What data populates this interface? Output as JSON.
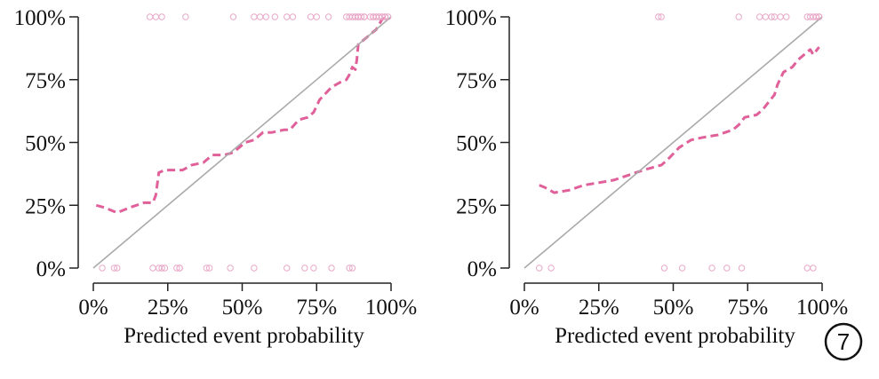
{
  "colors": {
    "curve": "#e0609a",
    "rug": "#e8a8c8",
    "diagonal": "#aaaaaa",
    "axis": "#222222"
  },
  "badge": {
    "label": "7"
  },
  "chart_data": [
    {
      "type": "line",
      "title": "",
      "xlabel": "Predicted event probability",
      "ylabel": "",
      "xlim": [
        0,
        100
      ],
      "ylim": [
        0,
        100
      ],
      "x_ticks": [
        "0%",
        "25%",
        "50%",
        "75%",
        "100%"
      ],
      "y_ticks": [
        "0%",
        "25%",
        "50%",
        "75%",
        "100%"
      ],
      "grid": false,
      "legend": "none",
      "series": [
        {
          "style": "dashed",
          "color": "#e0609a",
          "x": [
            1,
            4,
            8,
            12,
            17,
            20,
            21,
            22,
            24,
            28,
            30,
            33,
            37,
            40,
            44,
            47,
            51,
            54,
            57,
            60,
            64,
            66,
            69,
            72,
            74,
            76,
            80,
            83,
            85,
            86,
            87,
            88,
            88.5,
            89,
            92,
            95,
            96,
            97,
            99
          ],
          "y": [
            25,
            24,
            22,
            24,
            26,
            26,
            29,
            38,
            39,
            39,
            39,
            41,
            42,
            45,
            45,
            46,
            50,
            51,
            54,
            54,
            55,
            55,
            59,
            60,
            62,
            67,
            72,
            74,
            75,
            77,
            80,
            79,
            83,
            89,
            92,
            95,
            97,
            99,
            100
          ]
        },
        {
          "style": "solid",
          "color": "#aaaaaa",
          "x": [
            0,
            100
          ],
          "y": [
            0,
            100
          ]
        }
      ],
      "rug_top_x": [
        19,
        21,
        23,
        31,
        47,
        54,
        56,
        58,
        61,
        65,
        67,
        73,
        75,
        79,
        85,
        86,
        87,
        88,
        88,
        89,
        89,
        89,
        90,
        91,
        91,
        93,
        94,
        94,
        95,
        95,
        96,
        96,
        97,
        97,
        98,
        98,
        99
      ],
      "rug_bottom_x": [
        3,
        7,
        8,
        20,
        22,
        23,
        24,
        28,
        29,
        29,
        38,
        39,
        46,
        54,
        65,
        71,
        74,
        80,
        86,
        87
      ]
    },
    {
      "type": "line",
      "title": "",
      "xlabel": "Predicted event probability",
      "ylabel": "",
      "xlim": [
        0,
        100
      ],
      "ylim": [
        0,
        100
      ],
      "x_ticks": [
        "0%",
        "25%",
        "50%",
        "75%",
        "100%"
      ],
      "y_ticks": [
        "0%",
        "25%",
        "50%",
        "75%",
        "100%"
      ],
      "grid": false,
      "legend": "none",
      "series": [
        {
          "style": "dashed",
          "color": "#e0609a",
          "x": [
            5,
            7,
            10,
            15,
            20,
            25,
            30,
            35,
            40,
            43,
            46,
            48,
            52,
            56,
            60,
            65,
            70,
            72,
            74,
            78,
            80,
            82,
            84,
            85,
            87,
            90,
            92,
            95,
            96,
            97,
            99
          ],
          "y": [
            33,
            32,
            30,
            31,
            33,
            34,
            35,
            37,
            39,
            40,
            41,
            43,
            48,
            51,
            52,
            53,
            55,
            57,
            60,
            61,
            63,
            66,
            69,
            73,
            78,
            80,
            83,
            86,
            87,
            85,
            88
          ]
        },
        {
          "style": "solid",
          "color": "#aaaaaa",
          "x": [
            0,
            100
          ],
          "y": [
            0,
            100
          ]
        }
      ],
      "rug_top_x": [
        45,
        46,
        72,
        79,
        81,
        83,
        84,
        86,
        88,
        95,
        96,
        97,
        98,
        98,
        99,
        99,
        99
      ],
      "rug_bottom_x": [
        5,
        9,
        47,
        53,
        63,
        68,
        73,
        95,
        97
      ]
    }
  ]
}
